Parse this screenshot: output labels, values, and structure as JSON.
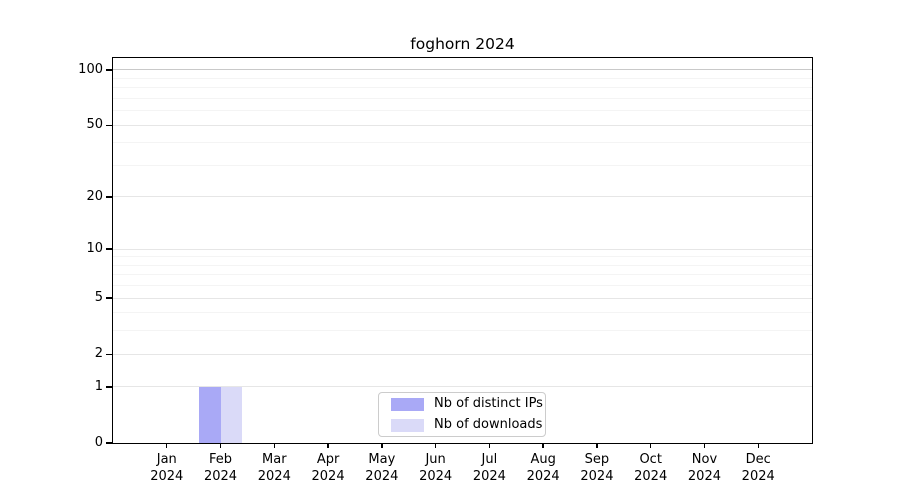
{
  "title": "foghorn 2024",
  "colors": {
    "distinct_ips_bar": "#a9a9f6",
    "downloads_bar": "#dadaf8",
    "axis": "#000000",
    "gridline_major": "#e6e6e6",
    "gridline_100": "#c9c9c9",
    "gridline_minor": "#f4f4f4",
    "legend_border": "#cccccc"
  },
  "legend": {
    "items": [
      {
        "label": "Nb of distinct IPs",
        "color": "#a9a9f6"
      },
      {
        "label": "Nb of downloads",
        "color": "#dadaf8"
      }
    ]
  },
  "chart_data": {
    "type": "bar",
    "title": "foghorn 2024",
    "yscale": "log-like (symlog, linear below 1)",
    "ylim": [
      0,
      116
    ],
    "yticks": [
      0,
      1,
      2,
      5,
      10,
      20,
      50,
      100
    ],
    "grid": true,
    "legend_position": "lower center inside plot",
    "categories": [
      {
        "month": "Jan",
        "year": "2024"
      },
      {
        "month": "Feb",
        "year": "2024"
      },
      {
        "month": "Mar",
        "year": "2024"
      },
      {
        "month": "Apr",
        "year": "2024"
      },
      {
        "month": "May",
        "year": "2024"
      },
      {
        "month": "Jun",
        "year": "2024"
      },
      {
        "month": "Jul",
        "year": "2024"
      },
      {
        "month": "Aug",
        "year": "2024"
      },
      {
        "month": "Sep",
        "year": "2024"
      },
      {
        "month": "Oct",
        "year": "2024"
      },
      {
        "month": "Nov",
        "year": "2024"
      },
      {
        "month": "Dec",
        "year": "2024"
      }
    ],
    "series": [
      {
        "name": "Nb of distinct IPs",
        "color": "#a9a9f6",
        "values": [
          0,
          1,
          0,
          0,
          0,
          0,
          0,
          0,
          0,
          0,
          0,
          0
        ]
      },
      {
        "name": "Nb of downloads",
        "color": "#dadaf8",
        "values": [
          0,
          1,
          0,
          0,
          0,
          0,
          0,
          0,
          0,
          0,
          0,
          0
        ]
      }
    ]
  }
}
